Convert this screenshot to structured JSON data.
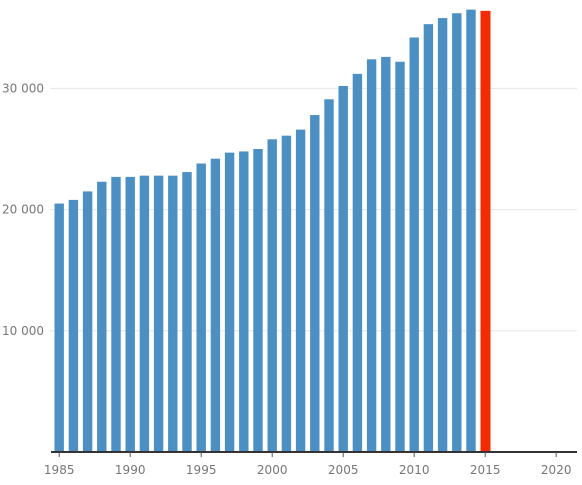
{
  "chart_data": {
    "type": "bar",
    "title": "",
    "xlabel": "",
    "ylabel": "",
    "x": [
      1985,
      1986,
      1987,
      1988,
      1989,
      1990,
      1991,
      1992,
      1993,
      1994,
      1995,
      1996,
      1997,
      1998,
      1999,
      2000,
      2001,
      2002,
      2003,
      2004,
      2005,
      2006,
      2007,
      2008,
      2009,
      2010,
      2011,
      2012,
      2013,
      2014,
      2015
    ],
    "values": [
      20500,
      20800,
      21500,
      22300,
      22700,
      22700,
      22800,
      22800,
      22800,
      23100,
      23800,
      24200,
      24700,
      24800,
      25000,
      25800,
      26100,
      26600,
      27800,
      29100,
      30200,
      31200,
      32400,
      32600,
      32200,
      34200,
      35300,
      35800,
      36200,
      36500,
      36400
    ],
    "highlight_x": 2015,
    "xlim": [
      1985,
      2020
    ],
    "ylim": [
      0,
      36500
    ],
    "x_ticks": [
      "1985",
      "1990",
      "1995",
      "2000",
      "2005",
      "2010",
      "2015",
      "2020"
    ],
    "y_ticks": [
      "10 000",
      "20 000",
      "30 000"
    ],
    "colors": {
      "bar": "#4b8fc3",
      "highlight": "#f22a05",
      "grid": "#e6e6e6",
      "axis": "#333333"
    },
    "grid": true,
    "legend": "none"
  }
}
